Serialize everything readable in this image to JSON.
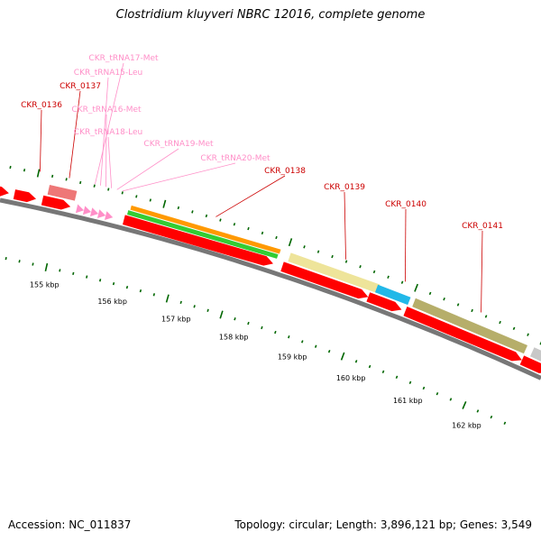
{
  "title": "Clostridium kluyveri NBRC 12016, complete genome",
  "accession_text": "Accession: NC_011837",
  "topology_text": "Topology: circular; Length: 3,896,121 bp; Genes: 3,549",
  "colors": {
    "cds_red": "#ff0000",
    "trna_pink": "#ff8fc8",
    "label_red": "#cc0000",
    "label_pink": "#ff8fc8",
    "orange": "#ff9900",
    "green": "#33cc33",
    "pale_yellow": "#eee49a",
    "cyan": "#22b8e8",
    "olive": "#b6ae6a",
    "salmon": "#ee7777",
    "gray": "#c8c8c8",
    "tick_green": "#006600",
    "backbone": "#777777"
  },
  "gene_labels": [
    {
      "text": "CKR_tRNA17-Met",
      "kind": "trna"
    },
    {
      "text": "CKR_tRNA15-Leu",
      "kind": "trna"
    },
    {
      "text": "CKR_0137",
      "kind": "cds"
    },
    {
      "text": "CKR_0136",
      "kind": "cds"
    },
    {
      "text": "CKR_tRNA16-Met",
      "kind": "trna"
    },
    {
      "text": "CKR_tRNA18-Leu",
      "kind": "trna"
    },
    {
      "text": "CKR_tRNA19-Met",
      "kind": "trna"
    },
    {
      "text": "CKR_tRNA20-Met",
      "kind": "trna"
    },
    {
      "text": "CKR_0138",
      "kind": "cds"
    },
    {
      "text": "CKR_0139",
      "kind": "cds"
    },
    {
      "text": "CKR_0140",
      "kind": "cds"
    },
    {
      "text": "CKR_0141",
      "kind": "cds"
    }
  ],
  "kbp_labels": [
    "155 kbp",
    "156 kbp",
    "157 kbp",
    "158 kbp",
    "159 kbp",
    "160 kbp",
    "161 kbp",
    "162 kbp"
  ]
}
